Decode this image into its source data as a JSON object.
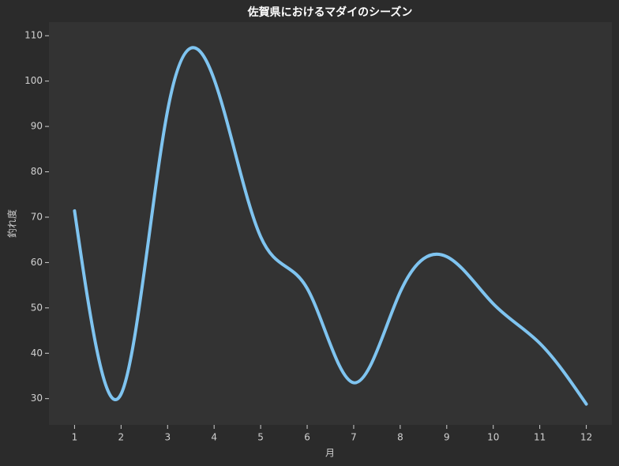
{
  "chart_data": {
    "type": "line",
    "title": "佐賀県におけるマダイのシーズン",
    "x_label": "月",
    "y_label": "釣れ度",
    "x": [
      1,
      2,
      3,
      4,
      5,
      6,
      7,
      8,
      9,
      10,
      11,
      12
    ],
    "series": [
      {
        "name": "釣れ度",
        "color": "#7fc4f0",
        "values": [
          71.4,
          31,
          93.5,
          100.4,
          65.7,
          54.3,
          33.5,
          53.5,
          61.3,
          50.9,
          42.2,
          28.8
        ]
      }
    ],
    "xlim": [
      0.45,
      12.55
    ],
    "ylim": [
      24.2,
      113
    ],
    "xticks": [
      1,
      2,
      3,
      4,
      5,
      6,
      7,
      8,
      9,
      10,
      11,
      12
    ],
    "yticks": [
      30,
      40,
      50,
      60,
      70,
      80,
      90,
      100,
      110
    ],
    "smooth": true,
    "grid": false
  }
}
